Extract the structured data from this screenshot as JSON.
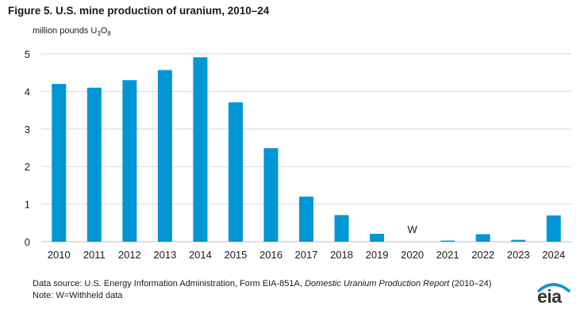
{
  "figure": {
    "title": "Figure 5. U.S. mine production of uranium, 2010–24",
    "unit_main": "million pounds U",
    "unit_sub1": "3",
    "unit_mid": "O",
    "unit_sub2": "8"
  },
  "footer": {
    "source_prefix": "Data source: U.S. Energy Information Administration, Form EIA-851A, ",
    "source_italic": "Domestic Uranium Production Report",
    "source_suffix": " (2010–24)",
    "note": "Note: W=Withheld data"
  },
  "logo": {
    "text": "eia",
    "accent": "#0096d6"
  },
  "chart_data": {
    "type": "bar",
    "categories": [
      "2010",
      "2011",
      "2012",
      "2013",
      "2014",
      "2015",
      "2016",
      "2017",
      "2018",
      "2019",
      "2020",
      "2021",
      "2022",
      "2023",
      "2024"
    ],
    "values": [
      4.2,
      4.1,
      4.3,
      4.57,
      4.91,
      3.71,
      2.49,
      1.2,
      0.71,
      0.21,
      null,
      0.03,
      0.2,
      0.05,
      0.7
    ],
    "withheld_label": "W",
    "withheld_index": 10,
    "ylim": [
      0,
      5
    ],
    "yticks": [
      "0",
      "1",
      "2",
      "3",
      "4",
      "5"
    ],
    "grid": true,
    "bar_color": "#0096d6"
  }
}
